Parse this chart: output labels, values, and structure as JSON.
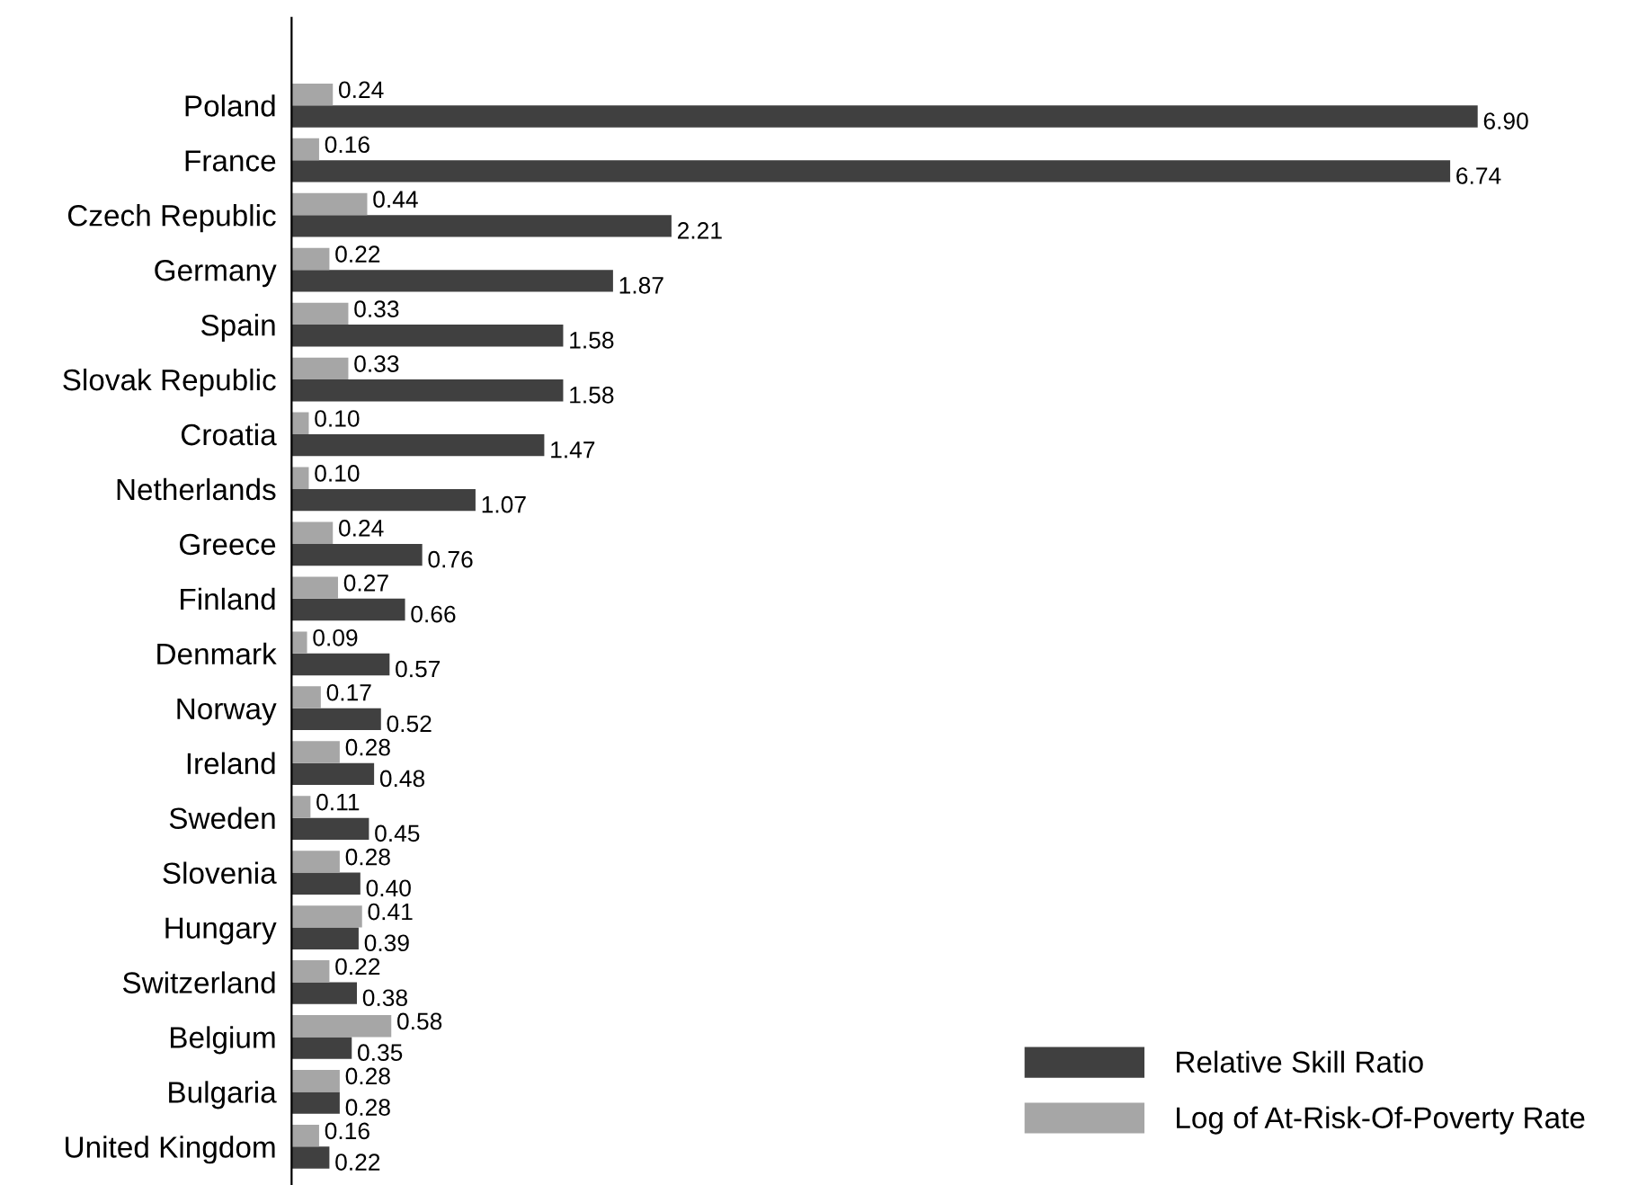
{
  "chart_data": {
    "type": "bar",
    "orientation": "horizontal",
    "categories": [
      "Poland",
      "France",
      "Czech Republic",
      "Germany",
      "Spain",
      "Slovak Republic",
      "Croatia",
      "Netherlands",
      "Greece",
      "Finland",
      "Denmark",
      "Norway",
      "Ireland",
      "Sweden",
      "Slovenia",
      "Hungary",
      "Switzerland",
      "Belgium",
      "Bulgaria",
      "United Kingdom"
    ],
    "series": [
      {
        "name": "Relative Skill Ratio",
        "color": "#404040",
        "values": [
          6.9,
          6.74,
          2.21,
          1.87,
          1.58,
          1.58,
          1.47,
          1.07,
          0.76,
          0.66,
          0.57,
          0.52,
          0.48,
          0.45,
          0.4,
          0.39,
          0.38,
          0.35,
          0.28,
          0.22
        ],
        "value_labels": [
          "6.90",
          "6.74",
          "2.21",
          "1.87",
          "1.58",
          "1.58",
          "1.47",
          "1.07",
          "0.76",
          "0.66",
          "0.57",
          "0.52",
          "0.48",
          "0.45",
          "0.40",
          "0.39",
          "0.38",
          "0.35",
          "0.28",
          "0.22"
        ]
      },
      {
        "name": "Log of At-Risk-Of-Poverty Rate",
        "color": "#a6a6a6",
        "values": [
          0.24,
          0.16,
          0.44,
          0.22,
          0.33,
          0.33,
          0.1,
          0.1,
          0.24,
          0.27,
          0.09,
          0.17,
          0.28,
          0.11,
          0.28,
          0.41,
          0.22,
          0.58,
          0.28,
          0.16
        ],
        "value_labels": [
          "0.24",
          "0.16",
          "0.44",
          "0.22",
          "0.33",
          "0.33",
          "0.10",
          "0.10",
          "0.24",
          "0.27",
          "0.09",
          "0.17",
          "0.28",
          "0.11",
          "0.28",
          "0.41",
          "0.22",
          "0.58",
          "0.28",
          "0.16"
        ]
      }
    ],
    "legend": "bottom right",
    "grid": false
  }
}
